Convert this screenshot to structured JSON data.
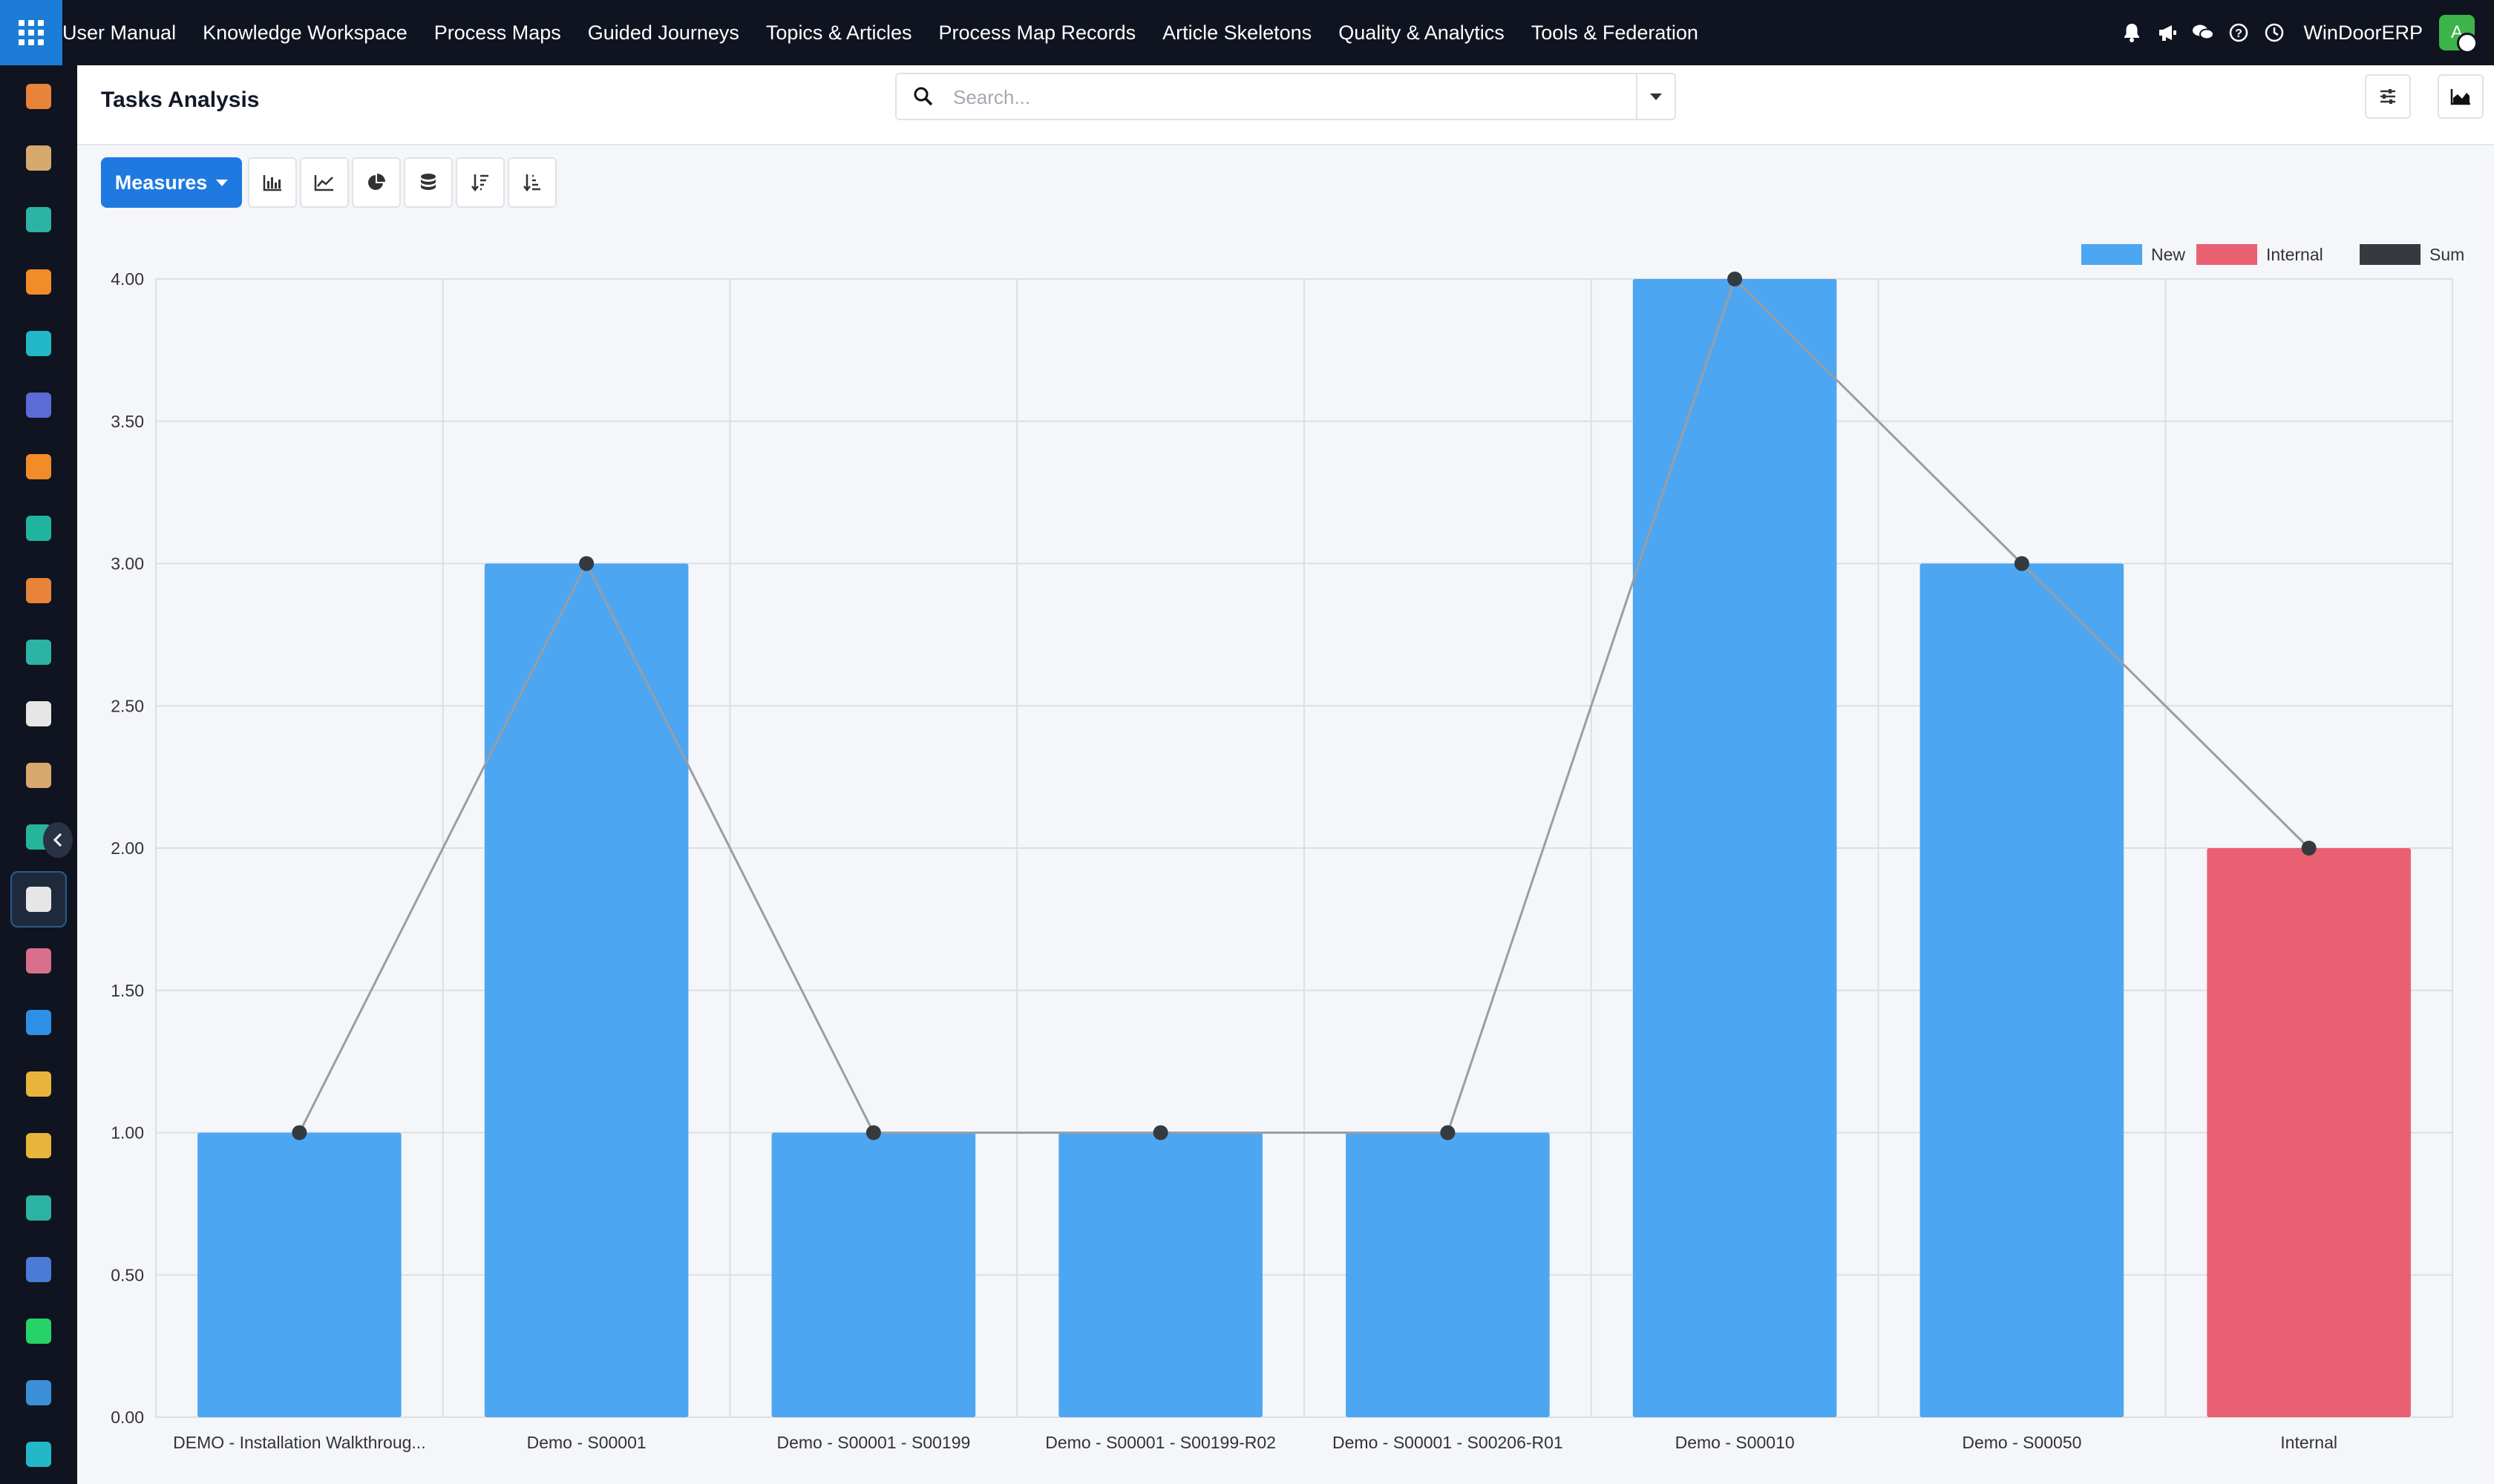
{
  "menu": {
    "items": [
      "User Manual",
      "Knowledge Workspace",
      "Process Maps",
      "Guided Journeys",
      "Topics & Articles",
      "Process Map Records",
      "Article Skeletons",
      "Quality & Analytics",
      "Tools & Federation"
    ]
  },
  "user": {
    "company": "WinDoorERP",
    "avatar_initial": "A"
  },
  "sidebar": {
    "icons": [
      {
        "name": "sales-app-icon",
        "color": "#e8833a"
      },
      {
        "name": "studio-app-icon",
        "color": "#d8a96c"
      },
      {
        "name": "contacts-app-icon",
        "color": "#2bb3a3"
      },
      {
        "name": "discuss-app-icon",
        "color": "#f28c28"
      },
      {
        "name": "website-app-icon",
        "color": "#22b8c7"
      },
      {
        "name": "email-app-icon",
        "color": "#5b6cd6"
      },
      {
        "name": "livechat-app-icon",
        "color": "#f28c28"
      },
      {
        "name": "project-app-icon",
        "color": "#1fb5a0"
      },
      {
        "name": "reporting-app-icon",
        "color": "#e8833a"
      },
      {
        "name": "employees-app-icon",
        "color": "#2bb3a3"
      },
      {
        "name": "modules-app-icon",
        "color": "#e6e6e6"
      },
      {
        "name": "studio2-app-icon",
        "color": "#d8a96c"
      },
      {
        "name": "approvals-app-icon",
        "color": "#24b59a"
      },
      {
        "name": "knowledge-app-icon",
        "color": "#e6e6e6"
      },
      {
        "name": "inventory-app-icon",
        "color": "#d86f8c"
      },
      {
        "name": "invoicing-app-icon",
        "color": "#2d8fe6"
      },
      {
        "name": "team-app-icon",
        "color": "#e8b43a"
      },
      {
        "name": "calendar-app-icon",
        "color": "#e8b43a"
      },
      {
        "name": "sign-app-icon",
        "color": "#2bb3a3"
      },
      {
        "name": "dashboards-app-icon",
        "color": "#4a7bd6"
      },
      {
        "name": "whatsapp-app-icon",
        "color": "#25d366"
      },
      {
        "name": "timer-app-icon",
        "color": "#3a8fd6"
      },
      {
        "name": "website2-app-icon",
        "color": "#22b8c7"
      }
    ]
  },
  "page": {
    "title": "Tasks Analysis"
  },
  "search": {
    "placeholder": "Search..."
  },
  "toolbar": {
    "measures_label": "Measures"
  },
  "chart_data": {
    "type": "bar",
    "categories": [
      "DEMO - Installation Walkthroug...",
      "Demo - S00001",
      "Demo - S00001 - S00199",
      "Demo - S00001 - S00199-R02",
      "Demo - S00001 - S00206-R01",
      "Demo - S00010",
      "Demo - S00050",
      "Internal"
    ],
    "series": [
      {
        "name": "New",
        "color": "#4da6f2",
        "values": [
          1,
          3,
          1,
          1,
          1,
          4,
          3,
          0
        ]
      },
      {
        "name": "Internal",
        "color": "#ea6073",
        "values": [
          0,
          0,
          0,
          0,
          0,
          0,
          0,
          2
        ]
      },
      {
        "name": "Sum",
        "color": "#343a40",
        "type": "line",
        "values": [
          1,
          3,
          1,
          1,
          1,
          4,
          3,
          2
        ]
      }
    ],
    "yticks": [
      "0.00",
      "0.50",
      "1.00",
      "1.50",
      "2.00",
      "2.50",
      "3.00",
      "3.50",
      "4.00"
    ],
    "ylim": [
      0,
      4
    ],
    "grid": true,
    "legend": "top-right"
  }
}
